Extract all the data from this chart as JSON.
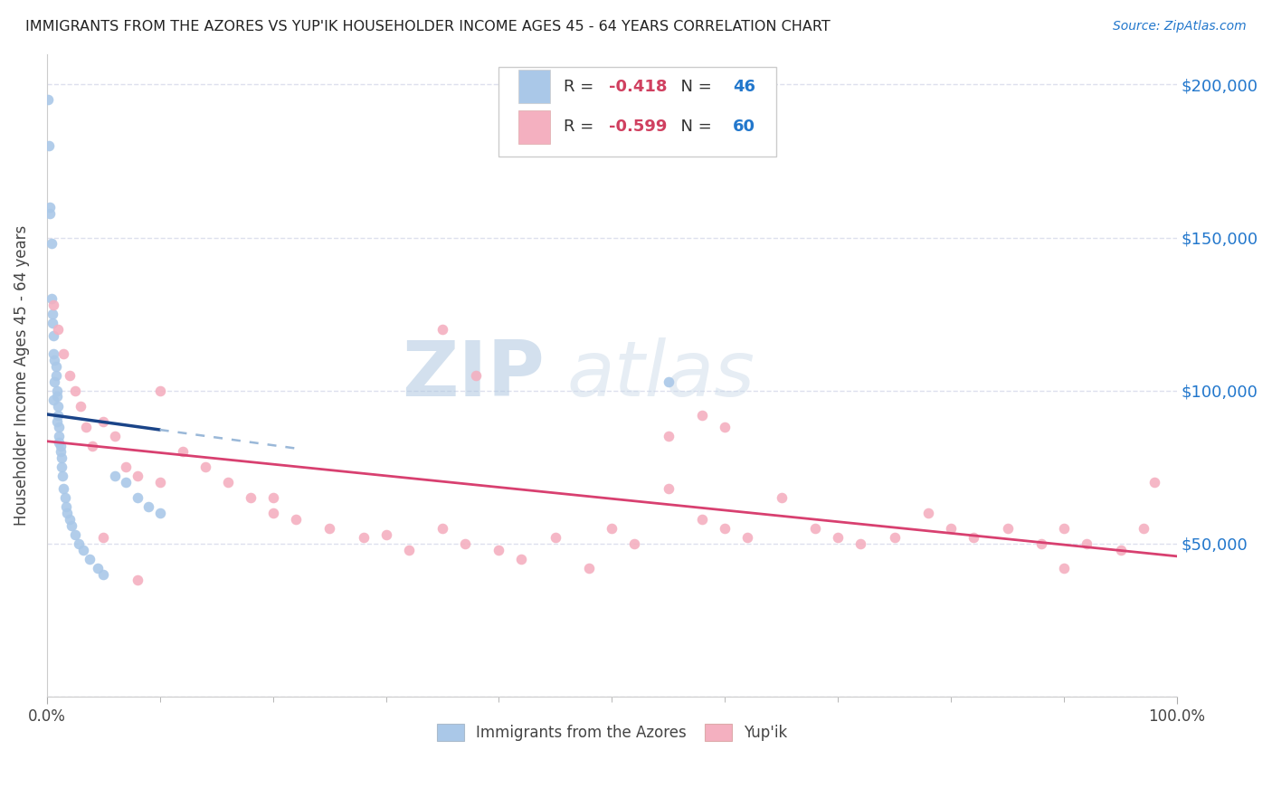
{
  "title": "IMMIGRANTS FROM THE AZORES VS YUP'IK HOUSEHOLDER INCOME AGES 45 - 64 YEARS CORRELATION CHART",
  "source": "Source: ZipAtlas.com",
  "ylabel": "Householder Income Ages 45 - 64 years",
  "xlim": [
    0.0,
    1.0
  ],
  "ylim": [
    0,
    210000
  ],
  "yticks": [
    0,
    50000,
    100000,
    150000,
    200000
  ],
  "legend_r_azores": "-0.418",
  "legend_n_azores": "46",
  "legend_r_yupik": "-0.599",
  "legend_n_yupik": "60",
  "color_azores": "#aac8e8",
  "color_azores_line": "#1a4488",
  "color_yupik": "#f4b0c0",
  "color_yupik_line": "#d84070",
  "color_dashed": "#9ab8d8",
  "marker_size": 70,
  "background_color": "#ffffff",
  "grid_color": "#dde0ee",
  "title_color": "#222222",
  "label_color": "#444444",
  "blue_color": "#2277cc",
  "azores_x": [
    0.001,
    0.002,
    0.003,
    0.004,
    0.004,
    0.005,
    0.006,
    0.006,
    0.007,
    0.008,
    0.008,
    0.009,
    0.009,
    0.01,
    0.01,
    0.011,
    0.011,
    0.012,
    0.012,
    0.013,
    0.013,
    0.014,
    0.015,
    0.016,
    0.017,
    0.018,
    0.02,
    0.022,
    0.025,
    0.028,
    0.032,
    0.038,
    0.045,
    0.05,
    0.06,
    0.07,
    0.08,
    0.09,
    0.1,
    0.003,
    0.005,
    0.007,
    0.009,
    0.011,
    0.55,
    0.006
  ],
  "azores_y": [
    195000,
    180000,
    158000,
    148000,
    130000,
    122000,
    118000,
    112000,
    110000,
    108000,
    105000,
    100000,
    98000,
    95000,
    92000,
    88000,
    85000,
    82000,
    80000,
    78000,
    75000,
    72000,
    68000,
    65000,
    62000,
    60000,
    58000,
    56000,
    53000,
    50000,
    48000,
    45000,
    42000,
    40000,
    72000,
    70000,
    65000,
    62000,
    60000,
    160000,
    125000,
    103000,
    90000,
    83000,
    103000,
    97000
  ],
  "yupik_x": [
    0.006,
    0.01,
    0.015,
    0.02,
    0.025,
    0.03,
    0.035,
    0.04,
    0.05,
    0.06,
    0.07,
    0.08,
    0.1,
    0.12,
    0.14,
    0.16,
    0.18,
    0.2,
    0.22,
    0.25,
    0.28,
    0.3,
    0.32,
    0.35,
    0.37,
    0.4,
    0.42,
    0.45,
    0.48,
    0.5,
    0.52,
    0.55,
    0.58,
    0.6,
    0.62,
    0.65,
    0.68,
    0.7,
    0.72,
    0.75,
    0.78,
    0.8,
    0.82,
    0.85,
    0.88,
    0.9,
    0.92,
    0.95,
    0.97,
    0.98,
    0.38,
    0.6,
    0.35,
    0.55,
    0.2,
    0.1,
    0.05,
    0.08,
    0.58,
    0.9
  ],
  "yupik_y": [
    128000,
    120000,
    112000,
    105000,
    100000,
    95000,
    88000,
    82000,
    90000,
    85000,
    75000,
    72000,
    70000,
    80000,
    75000,
    70000,
    65000,
    60000,
    58000,
    55000,
    52000,
    53000,
    48000,
    55000,
    50000,
    48000,
    45000,
    52000,
    42000,
    55000,
    50000,
    68000,
    58000,
    55000,
    52000,
    65000,
    55000,
    52000,
    50000,
    52000,
    60000,
    55000,
    52000,
    55000,
    50000,
    55000,
    50000,
    48000,
    55000,
    70000,
    105000,
    88000,
    120000,
    85000,
    65000,
    100000,
    52000,
    38000,
    92000,
    42000
  ]
}
